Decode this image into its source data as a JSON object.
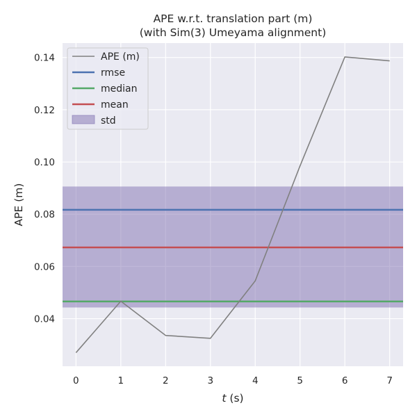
{
  "chart_data": {
    "type": "line",
    "title_line1": "APE w.r.t. translation part (m)",
    "title_line2": "(with Sim(3) Umeyama alignment)",
    "xlabel_var": "t",
    "xlabel_unit": " (s)",
    "ylabel": "APE (m)",
    "xlim": [
      -0.3,
      7.3
    ],
    "ylim": [
      0.0218,
      0.1455
    ],
    "x_ticks": [
      0,
      1,
      2,
      3,
      4,
      5,
      6,
      7
    ],
    "x_tick_labels": [
      "0",
      "1",
      "2",
      "3",
      "4",
      "5",
      "6",
      "7"
    ],
    "y_ticks": [
      0.04,
      0.06,
      0.08,
      0.1,
      0.12,
      0.14
    ],
    "y_tick_labels": [
      "0.04",
      "0.06",
      "0.08",
      "0.10",
      "0.12",
      "0.14"
    ],
    "grid": true,
    "legend_position": "top-left",
    "series": [
      {
        "name": "APE (m)",
        "kind": "line",
        "color": "#808080",
        "x": [
          0,
          1,
          2,
          3,
          4,
          5,
          6,
          7
        ],
        "values": [
          0.027,
          0.0467,
          0.0336,
          0.0325,
          0.0545,
          0.0985,
          0.1402,
          0.1387
        ]
      }
    ],
    "stats": {
      "rmse": {
        "name": "rmse",
        "value": 0.0817,
        "color": "#4c72b0"
      },
      "median": {
        "name": "median",
        "value": 0.0466,
        "color": "#55a868"
      },
      "mean": {
        "name": "mean",
        "value": 0.0673,
        "color": "#c44e52"
      },
      "std": {
        "name": "std",
        "lower": 0.0443,
        "upper": 0.0906,
        "color": "#8172b2"
      }
    },
    "legend": [
      "APE (m)",
      "rmse",
      "median",
      "mean",
      "std"
    ]
  }
}
